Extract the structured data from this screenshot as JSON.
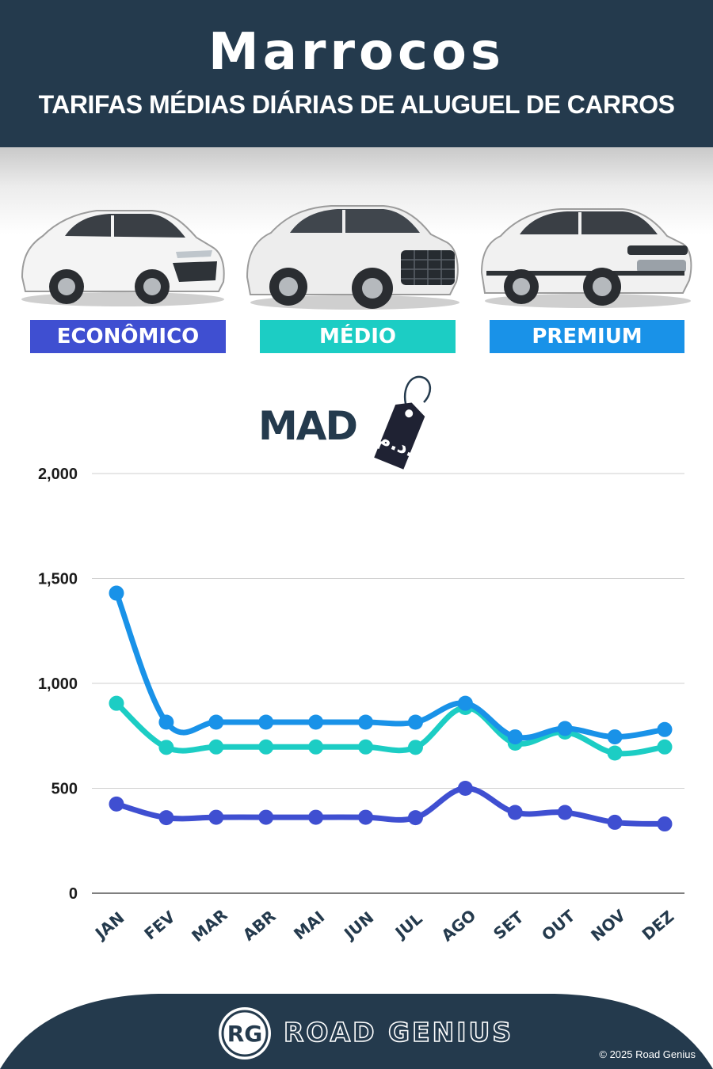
{
  "header": {
    "country": "Marrocos",
    "subtitle": "TARIFAS MÉDIAS DIÁRIAS DE ALUGUEL DE CARROS"
  },
  "categories": [
    {
      "label": "ECONÔMICO",
      "color": "#3f4fd1"
    },
    {
      "label": "MÉDIO",
      "color": "#1ccdc4"
    },
    {
      "label": "PREMIUM",
      "color": "#1992e8"
    }
  ],
  "currency": {
    "code": "MAD",
    "symbol": "د.م."
  },
  "chart_data": {
    "type": "line",
    "categories": [
      "JAN",
      "FEV",
      "MAR",
      "ABR",
      "MAI",
      "JUN",
      "JUL",
      "AGO",
      "SET",
      "OUT",
      "NOV",
      "DEZ"
    ],
    "ylim": [
      0,
      2000
    ],
    "yticks": [
      0,
      500,
      1000,
      1500,
      2000
    ],
    "ytick_labels": [
      "0",
      "500",
      "1,000",
      "1,500",
      "2,000"
    ],
    "grid": true,
    "series": [
      {
        "name": "ECONÔMICO",
        "color": "#3f4fd1",
        "values": [
          425,
          360,
          362,
          362,
          362,
          362,
          360,
          500,
          385,
          385,
          338,
          330
        ]
      },
      {
        "name": "MÉDIO",
        "color": "#1ccdc4",
        "values": [
          905,
          695,
          697,
          697,
          697,
          697,
          695,
          885,
          715,
          768,
          668,
          697
        ]
      },
      {
        "name": "PREMIUM",
        "color": "#1992e8",
        "values": [
          1430,
          815,
          815,
          815,
          815,
          815,
          815,
          905,
          745,
          785,
          745,
          780
        ]
      }
    ]
  },
  "footer": {
    "logo_initials": "RG",
    "brand": "ROAD GENIUS",
    "copyright": "© 2025 Road Genius"
  }
}
